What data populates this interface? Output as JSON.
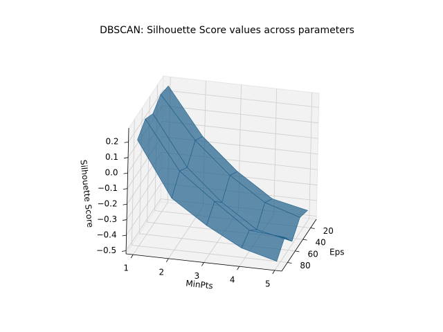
{
  "chart_data": {
    "type": "surface3d",
    "title": "DBSCAN: Silhouette Score values across parameters",
    "xlabel": "MinPts",
    "ylabel": "Eps",
    "zlabel": "Silhouette Score",
    "x": [
      1,
      2,
      3,
      4,
      5
    ],
    "y": [
      10,
      30,
      50,
      70,
      90
    ],
    "z": [
      [
        0.25,
        0.27,
        0.22,
        0.26,
        0.2
      ],
      [
        -0.05,
        0.0,
        -0.1,
        -0.05,
        -0.15
      ],
      [
        -0.25,
        -0.2,
        -0.3,
        -0.22,
        -0.3
      ],
      [
        -0.4,
        -0.35,
        -0.45,
        -0.38,
        -0.42
      ],
      [
        -0.45,
        -0.42,
        -0.5,
        -0.4,
        -0.48
      ]
    ],
    "color": "#1f5f8b",
    "xlim": [
      0.8,
      5.2
    ],
    "xticks": [
      1,
      2,
      3,
      4,
      5
    ],
    "ylim": [
      5,
      95
    ],
    "yticks": [
      20,
      40,
      60,
      80
    ],
    "zlim": [
      -0.52,
      0.29
    ],
    "zticks": [
      {
        "value": -0.5,
        "label": "−0.5"
      },
      {
        "value": -0.4,
        "label": "−0.4"
      },
      {
        "value": -0.3,
        "label": "−0.3"
      },
      {
        "value": -0.2,
        "label": "−0.2"
      },
      {
        "value": -0.1,
        "label": "−0.1"
      },
      {
        "value": 0.0,
        "label": "0.0"
      },
      0.1,
      0.2
    ],
    "grid": true
  }
}
